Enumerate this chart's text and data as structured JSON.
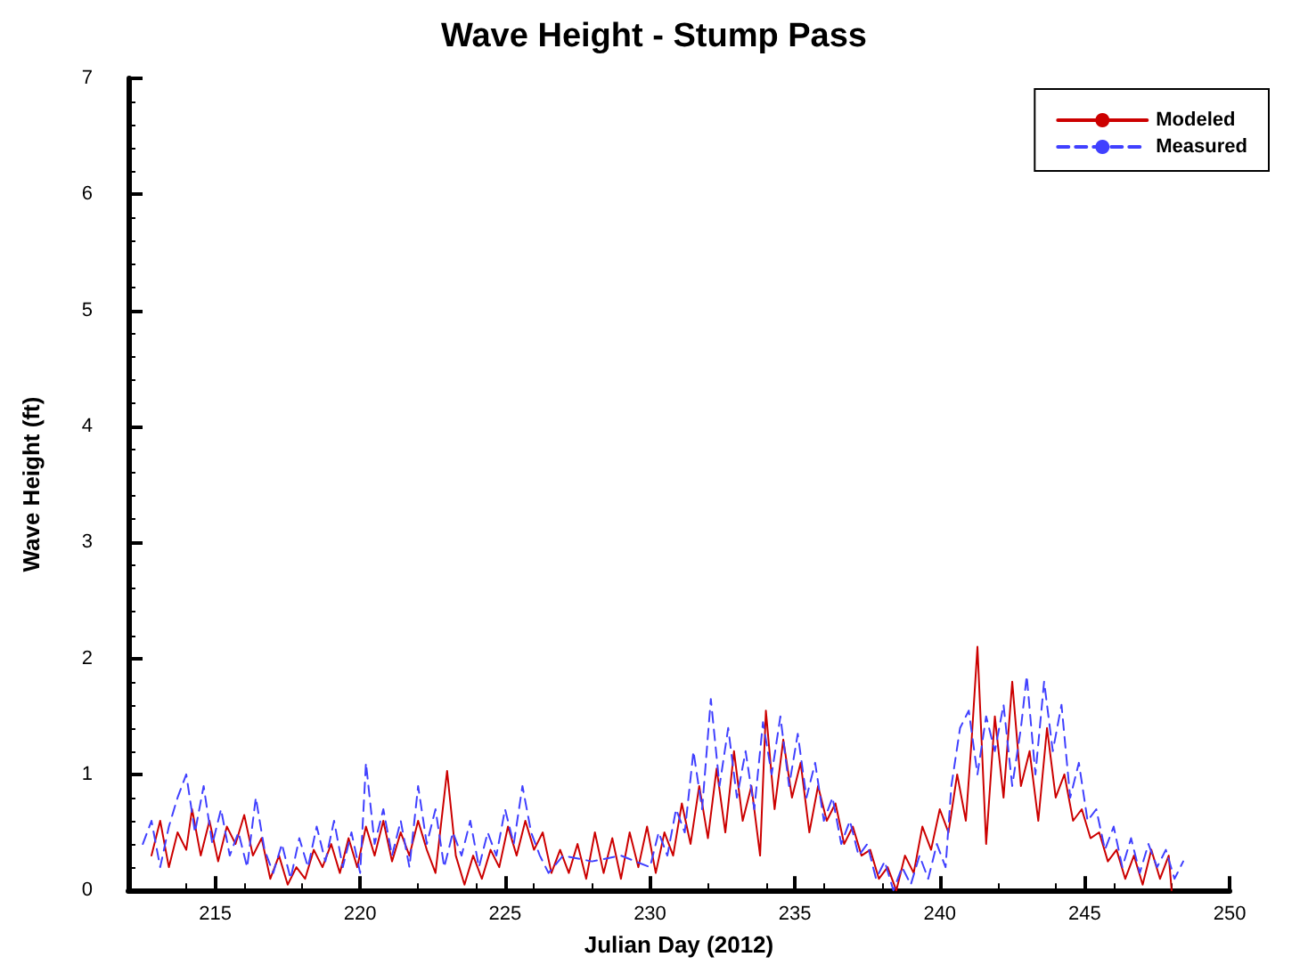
{
  "chart_data": {
    "type": "line",
    "title": "Wave Height - Stump Pass",
    "xlabel": "Julian Day (2012)",
    "ylabel": "Wave Height (ft)",
    "xlim": [
      212,
      250
    ],
    "xticks": [
      215,
      220,
      225,
      230,
      235,
      240,
      245,
      250
    ],
    "ylim": [
      0,
      7
    ],
    "yticks": [
      0,
      1,
      2,
      3,
      4,
      5,
      6,
      7
    ],
    "grid": false,
    "legend": "top right",
    "marker": "none",
    "series": [
      {
        "name": "Modeled",
        "color": "#cc0000",
        "line_style": "solid",
        "x": [
          212.8,
          213.1,
          213.4,
          213.7,
          214.0,
          214.2,
          214.5,
          214.8,
          215.1,
          215.4,
          215.7,
          216.0,
          216.3,
          216.6,
          216.9,
          217.2,
          217.5,
          217.8,
          218.1,
          218.4,
          218.7,
          219.0,
          219.3,
          219.6,
          219.9,
          220.2,
          220.5,
          220.8,
          221.1,
          221.4,
          221.7,
          222.0,
          222.3,
          222.6,
          223.0,
          223.3,
          223.6,
          223.9,
          224.2,
          224.5,
          224.8,
          225.1,
          225.4,
          225.7,
          226.0,
          226.3,
          226.6,
          226.9,
          227.2,
          227.5,
          227.8,
          228.1,
          228.4,
          228.7,
          229.0,
          229.3,
          229.6,
          229.9,
          230.2,
          230.5,
          230.8,
          231.1,
          231.4,
          231.7,
          232.0,
          232.3,
          232.6,
          232.9,
          233.2,
          233.5,
          233.8,
          234.0,
          234.3,
          234.6,
          234.9,
          235.2,
          235.5,
          235.8,
          236.1,
          236.4,
          236.7,
          237.0,
          237.3,
          237.6,
          237.9,
          238.2,
          238.5,
          238.8,
          239.1,
          239.4,
          239.7,
          240.0,
          240.3,
          240.6,
          240.9,
          241.1,
          241.3,
          241.6,
          241.9,
          242.2,
          242.5,
          242.8,
          243.1,
          243.4,
          243.7,
          244.0,
          244.3,
          244.6,
          244.9,
          245.2,
          245.5,
          245.8,
          246.1,
          246.4,
          246.7,
          247.0,
          247.3,
          247.6,
          247.9,
          248.0
        ],
        "values": [
          0.3,
          0.6,
          0.2,
          0.5,
          0.35,
          0.7,
          0.3,
          0.6,
          0.25,
          0.55,
          0.4,
          0.65,
          0.3,
          0.45,
          0.1,
          0.3,
          0.05,
          0.2,
          0.1,
          0.35,
          0.2,
          0.4,
          0.15,
          0.45,
          0.2,
          0.55,
          0.3,
          0.6,
          0.25,
          0.5,
          0.3,
          0.6,
          0.35,
          0.15,
          1.03,
          0.3,
          0.05,
          0.3,
          0.1,
          0.35,
          0.2,
          0.55,
          0.3,
          0.6,
          0.35,
          0.5,
          0.15,
          0.35,
          0.15,
          0.4,
          0.1,
          0.5,
          0.15,
          0.45,
          0.1,
          0.5,
          0.2,
          0.55,
          0.15,
          0.5,
          0.3,
          0.75,
          0.4,
          0.9,
          0.45,
          1.05,
          0.5,
          1.2,
          0.6,
          0.9,
          0.3,
          1.55,
          0.7,
          1.3,
          0.8,
          1.1,
          0.5,
          0.9,
          0.6,
          0.75,
          0.4,
          0.55,
          0.3,
          0.35,
          0.1,
          0.2,
          0.0,
          0.3,
          0.15,
          0.55,
          0.35,
          0.7,
          0.5,
          1.0,
          0.6,
          1.3,
          2.1,
          0.4,
          1.5,
          0.8,
          1.8,
          0.9,
          1.2,
          0.6,
          1.4,
          0.8,
          1.0,
          0.6,
          0.7,
          0.45,
          0.5,
          0.25,
          0.35,
          0.1,
          0.3,
          0.05,
          0.35,
          0.1,
          0.3,
          0.0
        ]
      },
      {
        "name": "Measured",
        "color": "#4040ff",
        "line_style": "dashed",
        "x": [
          212.5,
          212.8,
          213.1,
          213.4,
          213.7,
          214.0,
          214.3,
          214.6,
          214.9,
          215.2,
          215.5,
          215.8,
          216.1,
          216.4,
          216.7,
          217.0,
          217.3,
          217.6,
          217.9,
          218.2,
          218.5,
          218.8,
          219.1,
          219.4,
          219.7,
          220.0,
          220.2,
          220.5,
          220.8,
          221.1,
          221.4,
          221.7,
          222.0,
          222.3,
          222.6,
          222.9,
          223.2,
          223.5,
          223.8,
          224.1,
          224.4,
          224.7,
          225.0,
          225.3,
          225.6,
          225.9,
          226.2,
          226.5,
          227.0,
          228.0,
          229.0,
          230.0,
          230.3,
          230.6,
          230.9,
          231.2,
          231.5,
          231.8,
          232.1,
          232.4,
          232.7,
          233.0,
          233.3,
          233.6,
          233.9,
          234.2,
          234.5,
          234.8,
          235.1,
          235.4,
          235.7,
          236.0,
          236.3,
          236.6,
          236.9,
          237.2,
          237.5,
          237.8,
          238.1,
          238.4,
          238.7,
          239.0,
          239.3,
          239.6,
          239.9,
          240.2,
          240.4,
          240.7,
          241.0,
          241.3,
          241.6,
          241.9,
          242.2,
          242.5,
          242.8,
          243.0,
          243.3,
          243.6,
          243.9,
          244.2,
          244.5,
          244.8,
          245.1,
          245.4,
          245.7,
          246.0,
          246.3,
          246.6,
          246.9,
          247.2,
          247.5,
          247.8,
          248.1,
          248.4
        ],
        "values": [
          0.4,
          0.6,
          0.2,
          0.55,
          0.8,
          1.0,
          0.5,
          0.9,
          0.4,
          0.7,
          0.3,
          0.5,
          0.2,
          0.8,
          0.35,
          0.15,
          0.4,
          0.1,
          0.45,
          0.2,
          0.55,
          0.25,
          0.6,
          0.2,
          0.5,
          0.15,
          1.1,
          0.4,
          0.7,
          0.3,
          0.6,
          0.2,
          0.9,
          0.4,
          0.7,
          0.2,
          0.5,
          0.3,
          0.6,
          0.2,
          0.5,
          0.3,
          0.7,
          0.4,
          0.9,
          0.5,
          0.3,
          0.15,
          0.3,
          0.25,
          0.3,
          0.2,
          0.5,
          0.3,
          0.7,
          0.5,
          1.2,
          0.7,
          1.65,
          0.9,
          1.4,
          0.8,
          1.2,
          0.7,
          1.45,
          1.0,
          1.5,
          0.9,
          1.35,
          0.8,
          1.1,
          0.6,
          0.8,
          0.4,
          0.6,
          0.3,
          0.4,
          0.1,
          0.25,
          0.0,
          0.2,
          0.05,
          0.3,
          0.1,
          0.4,
          0.2,
          0.9,
          1.4,
          1.55,
          1.0,
          1.5,
          1.2,
          1.6,
          0.9,
          1.4,
          1.85,
          1.0,
          1.8,
          1.2,
          1.6,
          0.8,
          1.1,
          0.6,
          0.7,
          0.35,
          0.55,
          0.2,
          0.45,
          0.15,
          0.4,
          0.2,
          0.35,
          0.1,
          0.25
        ]
      }
    ]
  }
}
